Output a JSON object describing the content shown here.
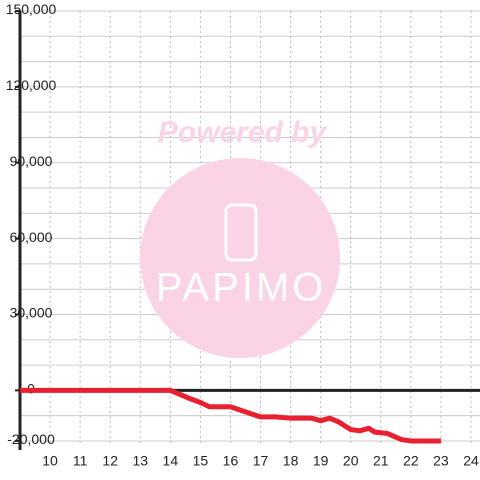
{
  "chart_data": {
    "type": "line",
    "watermark": {
      "title": "Powered by",
      "brand": "PAPIMO"
    },
    "x": [
      9,
      14,
      14.3,
      14.7,
      15,
      15.3,
      16,
      16.5,
      17,
      17.5,
      18,
      18.7,
      19,
      19.3,
      19.6,
      20,
      20.3,
      20.6,
      20.8,
      21.2,
      21.7,
      22,
      23
    ],
    "series": [
      {
        "color": "#e8202f",
        "values": [
          0,
          0,
          -1500,
          -3500,
          -4800,
          -6500,
          -6500,
          -8500,
          -10500,
          -10500,
          -11000,
          -11000,
          -12000,
          -11000,
          -12500,
          -15500,
          -16000,
          -15000,
          -16500,
          -17000,
          -19500,
          -20000,
          -20000
        ]
      }
    ],
    "xlim": [
      9,
      24.3
    ],
    "ylim": [
      -22000,
      150000
    ],
    "xticks": [
      10,
      11,
      12,
      13,
      14,
      15,
      16,
      17,
      18,
      19,
      20,
      21,
      22,
      23,
      24
    ],
    "yticks": [
      {
        "value": 150000,
        "label": "150,000"
      },
      {
        "value": 120000,
        "label": "120,000"
      },
      {
        "value": 90000,
        "label": "90,000"
      },
      {
        "value": 60000,
        "label": "60,000"
      },
      {
        "value": 30000,
        "label": "30,000"
      },
      0,
      {
        "value": -20000,
        "label": "-20,000"
      }
    ],
    "minor_grid_step": 10000,
    "grid": true
  }
}
